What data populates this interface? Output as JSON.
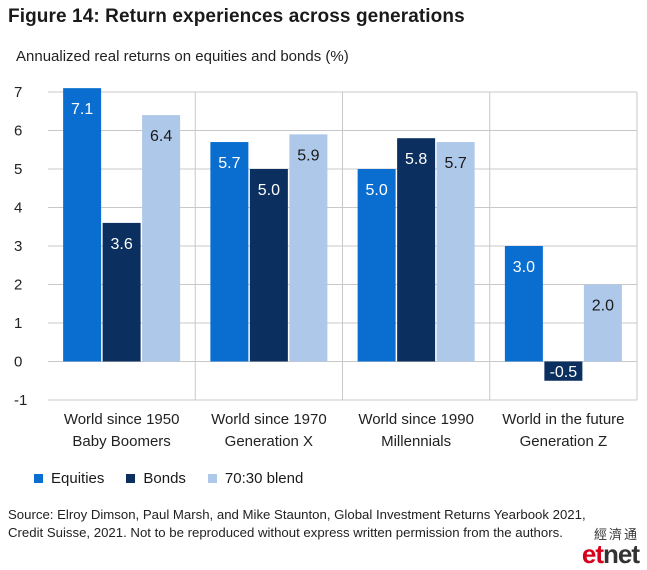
{
  "chart_data": {
    "type": "bar",
    "title": "Figure 14: Return experiences across generations",
    "subtitle": "Annualized real returns on equities and bonds (%)",
    "categories": [
      {
        "line1": "World since 1950",
        "line2": "Baby Boomers"
      },
      {
        "line1": "World since 1970",
        "line2": "Generation X"
      },
      {
        "line1": "World since 1990",
        "line2": "Millennials"
      },
      {
        "line1": "World in the future",
        "line2": "Generation Z"
      }
    ],
    "series": [
      {
        "name": "Equities",
        "color": "#0a6ed1",
        "label_color": "#ffffff",
        "values": [
          7.1,
          5.7,
          5.0,
          3.0
        ],
        "labels": [
          "7.1",
          "5.7",
          "5.0",
          "3.0"
        ]
      },
      {
        "name": "Bonds",
        "color": "#0b2f5e",
        "label_color": "#ffffff",
        "values": [
          3.6,
          5.0,
          5.8,
          -0.5
        ],
        "labels": [
          "3.6",
          "5.0",
          "5.8",
          "-0.5"
        ]
      },
      {
        "name": "70:30 blend",
        "color": "#aec8ea",
        "label_color": "#1a1a1a",
        "values": [
          6.4,
          5.9,
          5.7,
          2.0
        ],
        "labels": [
          "6.4",
          "5.9",
          "5.7",
          "2.0"
        ]
      }
    ],
    "ylim": [
      -1,
      7
    ],
    "yticks": [
      "7",
      "6",
      "5",
      "4",
      "3",
      "2",
      "1",
      "0",
      "-1"
    ],
    "grid": true,
    "legend_position": "bottom-left"
  },
  "source_text": "Source: Elroy Dimson, Paul Marsh, and Mike Staunton, Global Investment Returns Yearbook 2021, Credit Suisse, 2021. Not to be reproduced without express written permission from the authors.",
  "watermark": {
    "cjk": "經濟通",
    "prefix": "et",
    "suffix": "net"
  }
}
